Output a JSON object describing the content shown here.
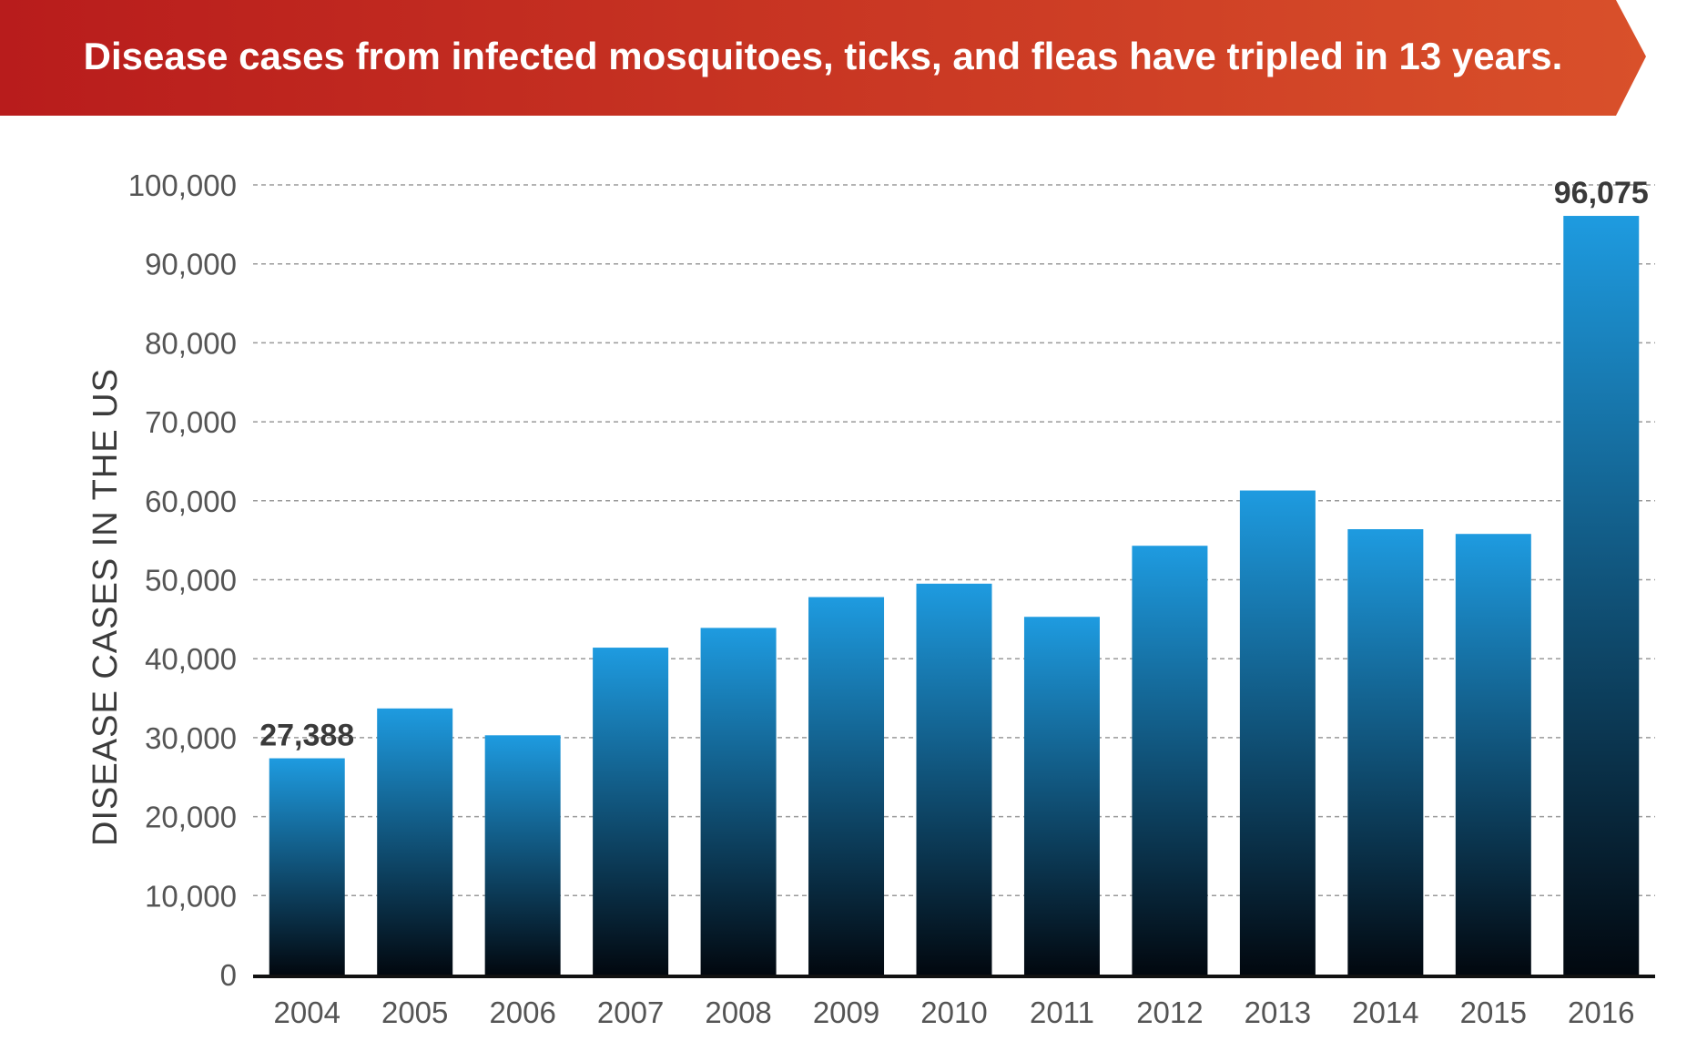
{
  "title": "Disease cases from infected mosquitoes, ticks, and fleas have tripled in 13 years.",
  "colors": {
    "banner_start": "#b81c1c",
    "banner_end": "#d9502a",
    "bar_top": "#1e9be0",
    "bar_bottom": "#02080f",
    "grid": "#9a9a9a",
    "axis": "#111111"
  },
  "chart_data": {
    "type": "bar",
    "title": "Disease cases from infected mosquitoes, ticks, and fleas have tripled in 13 years.",
    "xlabel": "",
    "ylabel": "DISEASE CASES IN THE US",
    "categories": [
      "2004",
      "2005",
      "2006",
      "2007",
      "2008",
      "2009",
      "2010",
      "2011",
      "2012",
      "2013",
      "2014",
      "2015",
      "2016"
    ],
    "values": [
      27388,
      33700,
      30300,
      41400,
      43900,
      47800,
      49500,
      45300,
      54300,
      61300,
      56400,
      55800,
      96075
    ],
    "ylim": [
      0,
      100000
    ],
    "yticks": [
      0,
      10000,
      20000,
      30000,
      40000,
      50000,
      60000,
      70000,
      80000,
      90000,
      100000
    ],
    "ytick_labels": [
      "0",
      "10,000",
      "20,000",
      "30,000",
      "40,000",
      "50,000",
      "60,000",
      "70,000",
      "80,000",
      "90,000",
      "100,000"
    ],
    "grid": true,
    "grid_style": "dashed",
    "annotations": [
      {
        "category": "2004",
        "text": "27,388"
      },
      {
        "category": "2016",
        "text": "96,075"
      }
    ]
  }
}
